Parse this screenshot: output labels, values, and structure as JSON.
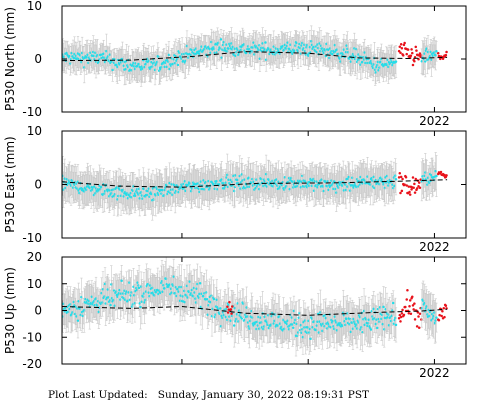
{
  "footer": {
    "label": "Plot Last Updated:",
    "value": "Sunday, January 30, 2022 08:19:31 PST"
  },
  "colors": {
    "final": "#22dde9",
    "rapid": "#e8121b",
    "errorbar": "#c9c9c9",
    "trend": "#000000"
  },
  "chart_data": [
    {
      "type": "scatter",
      "ylabel": "P530 North (mm)",
      "ylim": [
        -10,
        10
      ],
      "yticks": [
        -10,
        0,
        10
      ],
      "xlim": [
        2019.05,
        2022.25
      ],
      "xticks": [
        {
          "value": 2022.0,
          "label": "2022"
        }
      ],
      "series": [
        {
          "color_key": "final",
          "t_range": [
            2019.05,
            2021.7
          ],
          "knots": [
            [
              2019.05,
              0.3
            ],
            [
              2019.35,
              0.2
            ],
            [
              2019.6,
              -1.3
            ],
            [
              2019.8,
              -1.2
            ],
            [
              2020.0,
              0.5
            ],
            [
              2020.3,
              2.3
            ],
            [
              2020.6,
              1.6
            ],
            [
              2020.9,
              2.0
            ],
            [
              2021.1,
              1.8
            ],
            [
              2021.35,
              0.7
            ],
            [
              2021.45,
              -0.3
            ],
            [
              2021.55,
              -1.4
            ],
            [
              2021.7,
              -0.6
            ]
          ],
          "noise": 1.0,
          "err": 2.5
        },
        {
          "color_key": "rapid",
          "t_range": [
            2021.72,
            2021.9
          ],
          "knots": [
            [
              2021.72,
              1.5
            ],
            [
              2021.8,
              0.8
            ],
            [
              2021.9,
              0.3
            ]
          ],
          "noise": 1.3,
          "err": 0
        },
        {
          "color_key": "final",
          "t_range": [
            2021.9,
            2022.02
          ],
          "knots": [
            [
              2021.9,
              0.2
            ],
            [
              2022.02,
              0.7
            ]
          ],
          "noise": 0.9,
          "err": 2.5
        },
        {
          "color_key": "rapid",
          "t_range": [
            2022.03,
            2022.1
          ],
          "knots": [
            [
              2022.03,
              0.5
            ],
            [
              2022.1,
              0.6
            ]
          ],
          "noise": 0.8,
          "err": 0
        }
      ],
      "trend": [
        [
          2019.05,
          -0.3
        ],
        [
          2019.6,
          -0.2
        ],
        [
          2020.1,
          0.5
        ],
        [
          2020.5,
          1.4
        ],
        [
          2021.0,
          1.1
        ],
        [
          2021.4,
          0.2
        ],
        [
          2021.8,
          0.1
        ],
        [
          2022.1,
          0.3
        ]
      ]
    },
    {
      "type": "scatter",
      "ylabel": "P530 East (mm)",
      "ylim": [
        -10,
        10
      ],
      "yticks": [
        -10,
        0,
        10
      ],
      "xlim": [
        2019.05,
        2022.25
      ],
      "xticks": [
        {
          "value": 2022.0,
          "label": "2022"
        }
      ],
      "series": [
        {
          "color_key": "final",
          "t_range": [
            2019.05,
            2021.7
          ],
          "knots": [
            [
              2019.05,
              0.2
            ],
            [
              2019.35,
              -1.0
            ],
            [
              2019.7,
              -1.8
            ],
            [
              2020.0,
              -0.6
            ],
            [
              2020.3,
              0.4
            ],
            [
              2020.6,
              0.3
            ],
            [
              2020.9,
              0.3
            ],
            [
              2021.2,
              -0.2
            ],
            [
              2021.45,
              0.4
            ],
            [
              2021.7,
              0.7
            ]
          ],
          "noise": 0.9,
          "err": 3.0
        },
        {
          "color_key": "rapid",
          "t_range": [
            2021.72,
            2021.9
          ],
          "knots": [
            [
              2021.72,
              1.0
            ],
            [
              2021.8,
              -0.8
            ],
            [
              2021.9,
              0.4
            ]
          ],
          "noise": 1.3,
          "err": 0
        },
        {
          "color_key": "final",
          "t_range": [
            2021.9,
            2022.02
          ],
          "knots": [
            [
              2021.9,
              0.8
            ],
            [
              2022.02,
              1.6
            ]
          ],
          "noise": 0.8,
          "err": 3.0
        },
        {
          "color_key": "rapid",
          "t_range": [
            2022.03,
            2022.1
          ],
          "knots": [
            [
              2022.03,
              2.2
            ],
            [
              2022.1,
              1.4
            ]
          ],
          "noise": 0.6,
          "err": 0
        }
      ],
      "trend": [
        [
          2019.05,
          0.5
        ],
        [
          2019.5,
          -0.3
        ],
        [
          2020.0,
          -0.5
        ],
        [
          2020.6,
          0.2
        ],
        [
          2021.2,
          0.3
        ],
        [
          2021.7,
          0.6
        ],
        [
          2022.1,
          0.9
        ]
      ]
    },
    {
      "type": "scatter",
      "ylabel": "P530 Up (mm)",
      "ylim": [
        -20,
        20
      ],
      "yticks": [
        -20,
        -10,
        0,
        10,
        20
      ],
      "xlim": [
        2019.05,
        2022.25
      ],
      "xticks": [
        {
          "value": 2022.0,
          "label": "2022"
        }
      ],
      "series": [
        {
          "color_key": "final",
          "t_range": [
            2019.05,
            2021.7
          ],
          "knots": [
            [
              2019.05,
              0.0
            ],
            [
              2019.3,
              3.0
            ],
            [
              2019.6,
              6.0
            ],
            [
              2019.9,
              8.5
            ],
            [
              2020.1,
              6.5
            ],
            [
              2020.3,
              1.0
            ],
            [
              2020.6,
              -3.5
            ],
            [
              2020.9,
              -5.5
            ],
            [
              2021.2,
              -5.0
            ],
            [
              2021.45,
              -4.5
            ],
            [
              2021.7,
              -2.0
            ]
          ],
          "noise": 3.2,
          "err": 6.5
        },
        {
          "color_key": "rapid",
          "t_range": [
            2020.36,
            2020.4
          ],
          "knots": [
            [
              2020.36,
              1.0
            ],
            [
              2020.4,
              2.0
            ]
          ],
          "noise": 2.0,
          "err": 0
        },
        {
          "color_key": "rapid",
          "t_range": [
            2021.72,
            2021.9
          ],
          "knots": [
            [
              2021.72,
              -3.0
            ],
            [
              2021.8,
              3.0
            ],
            [
              2021.9,
              -3.5
            ]
          ],
          "noise": 3.2,
          "err": 0
        },
        {
          "color_key": "final",
          "t_range": [
            2021.9,
            2022.02
          ],
          "knots": [
            [
              2021.9,
              2.0
            ],
            [
              2022.02,
              -4.0
            ]
          ],
          "noise": 2.5,
          "err": 6.5
        },
        {
          "color_key": "rapid",
          "t_range": [
            2022.03,
            2022.1
          ],
          "knots": [
            [
              2022.03,
              -2.0
            ],
            [
              2022.1,
              1.0
            ]
          ],
          "noise": 3.0,
          "err": 0
        }
      ],
      "trend": [
        [
          2019.05,
          1.5
        ],
        [
          2019.6,
          0.8
        ],
        [
          2020.0,
          1.5
        ],
        [
          2020.5,
          -1.0
        ],
        [
          2021.0,
          -1.8
        ],
        [
          2021.5,
          -0.8
        ],
        [
          2021.9,
          -0.2
        ],
        [
          2022.1,
          0.5
        ]
      ]
    }
  ]
}
